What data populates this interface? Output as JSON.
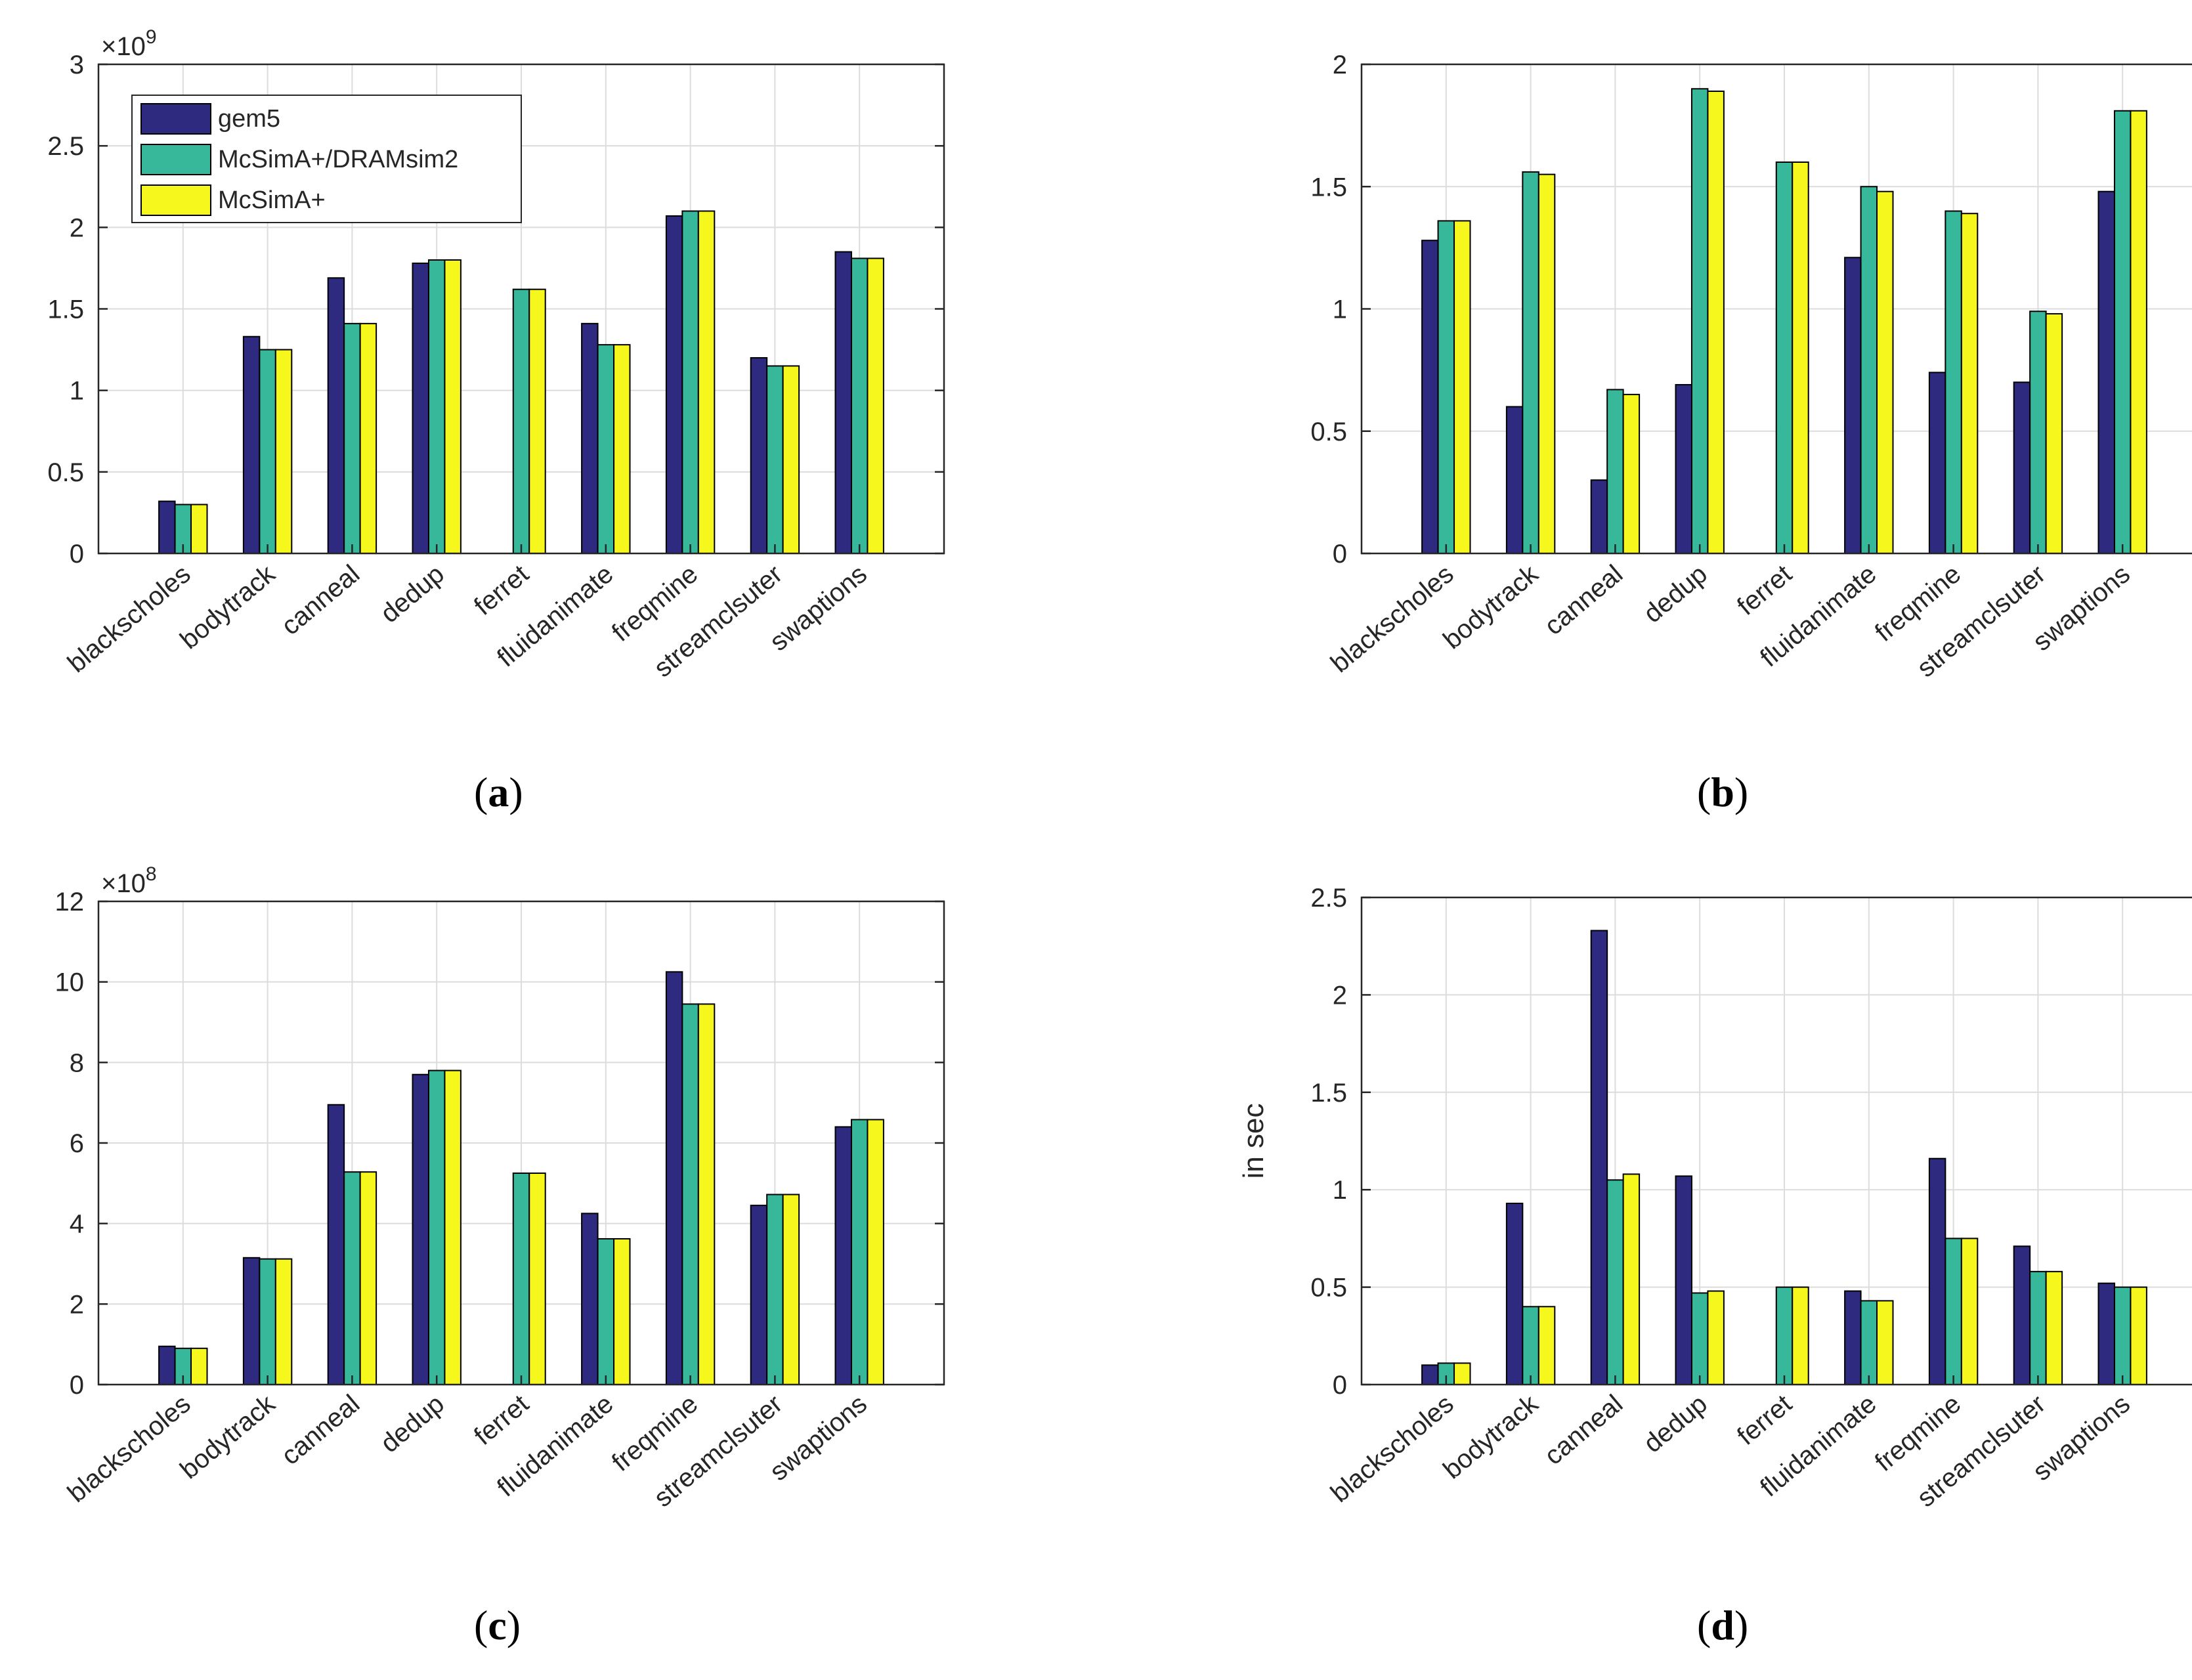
{
  "legend": {
    "gem5": "gem5",
    "mcsim_dramsim2": "McSimA+/DRAMsim2",
    "mcsim": "McSimA+"
  },
  "colors": {
    "gem5": "#2e2a7f",
    "mcsim_dramsim2": "#37b89b",
    "mcsim": "#f6f71c",
    "grid": "#dcdcdc",
    "axis": "#262626"
  },
  "captions": {
    "a": "(a)",
    "a_letter": "a",
    "b_letter": "b",
    "c_letter": "c",
    "d_letter": "d"
  },
  "chart_data": [
    {
      "id": "a",
      "type": "bar",
      "categories": [
        "blackscholes",
        "bodytrack",
        "canneal",
        "dedup",
        "ferret",
        "fluidanimate",
        "freqmine",
        "streamclsuter",
        "swaptions"
      ],
      "series": [
        {
          "name": "gem5",
          "values": [
            0.32,
            1.33,
            1.69,
            1.78,
            null,
            1.41,
            2.07,
            1.2,
            1.85
          ]
        },
        {
          "name": "McSimA+/DRAMsim2",
          "values": [
            0.3,
            1.25,
            1.41,
            1.8,
            1.62,
            1.28,
            2.1,
            1.15,
            1.81
          ]
        },
        {
          "name": "McSimA+",
          "values": [
            0.3,
            1.25,
            1.41,
            1.8,
            1.62,
            1.28,
            2.1,
            1.15,
            1.81
          ]
        }
      ],
      "ylim": [
        0,
        3
      ],
      "yticks": [
        "0",
        "0.5",
        "1",
        "1.5",
        "2",
        "2.5",
        "3"
      ],
      "exponent_base": "×10",
      "exponent_power": "9",
      "ylabel": "",
      "grid": true,
      "legend_position": "top-left"
    },
    {
      "id": "b",
      "type": "bar",
      "categories": [
        "blackscholes",
        "bodytrack",
        "canneal",
        "dedup",
        "ferret",
        "fluidanimate",
        "freqmine",
        "streamclsuter",
        "swaptions"
      ],
      "series": [
        {
          "name": "gem5",
          "values": [
            1.28,
            0.6,
            0.3,
            0.69,
            null,
            1.21,
            0.74,
            0.7,
            1.48
          ]
        },
        {
          "name": "McSimA+/DRAMsim2",
          "values": [
            1.36,
            1.56,
            0.67,
            1.9,
            1.6,
            1.5,
            1.4,
            0.99,
            1.81
          ]
        },
        {
          "name": "McSimA+",
          "values": [
            1.36,
            1.55,
            0.65,
            1.89,
            1.6,
            1.48,
            1.39,
            0.98,
            1.81
          ]
        }
      ],
      "ylim": [
        0,
        2
      ],
      "yticks": [
        "0",
        "0.5",
        "1",
        "1.5",
        "2"
      ],
      "ylabel": "",
      "grid": true
    },
    {
      "id": "c",
      "type": "bar",
      "categories": [
        "blackscholes",
        "bodytrack",
        "canneal",
        "dedup",
        "ferret",
        "fluidanimate",
        "freqmine",
        "streamclsuter",
        "swaptions"
      ],
      "series": [
        {
          "name": "gem5",
          "values": [
            0.95,
            3.15,
            6.95,
            7.7,
            null,
            4.25,
            10.25,
            4.45,
            6.4
          ]
        },
        {
          "name": "McSimA+/DRAMsim2",
          "values": [
            0.9,
            3.12,
            5.28,
            7.8,
            5.25,
            3.62,
            9.45,
            4.72,
            6.58
          ]
        },
        {
          "name": "McSimA+",
          "values": [
            0.9,
            3.12,
            5.28,
            7.8,
            5.25,
            3.62,
            9.45,
            4.72,
            6.58
          ]
        }
      ],
      "ylim": [
        0,
        12
      ],
      "yticks": [
        "0",
        "2",
        "4",
        "6",
        "8",
        "10",
        "12"
      ],
      "exponent_base": "×10",
      "exponent_power": "8",
      "ylabel": "",
      "grid": true
    },
    {
      "id": "d",
      "type": "bar",
      "categories": [
        "blackscholes",
        "bodytrack",
        "canneal",
        "dedup",
        "ferret",
        "fluidanimate",
        "freqmine",
        "streamclsuter",
        "swaptions"
      ],
      "series": [
        {
          "name": "gem5",
          "values": [
            0.1,
            0.93,
            2.33,
            1.07,
            null,
            0.48,
            1.16,
            0.71,
            0.52
          ]
        },
        {
          "name": "McSimA+/DRAMsim2",
          "values": [
            0.11,
            0.4,
            1.05,
            0.47,
            0.5,
            0.43,
            0.75,
            0.58,
            0.5
          ]
        },
        {
          "name": "McSimA+",
          "values": [
            0.11,
            0.4,
            1.08,
            0.48,
            0.5,
            0.43,
            0.75,
            0.58,
            0.5
          ]
        }
      ],
      "ylim": [
        0,
        2.5
      ],
      "yticks": [
        "0",
        "0.5",
        "1",
        "1.5",
        "2",
        "2.5"
      ],
      "ylabel": "in sec",
      "grid": true
    }
  ]
}
